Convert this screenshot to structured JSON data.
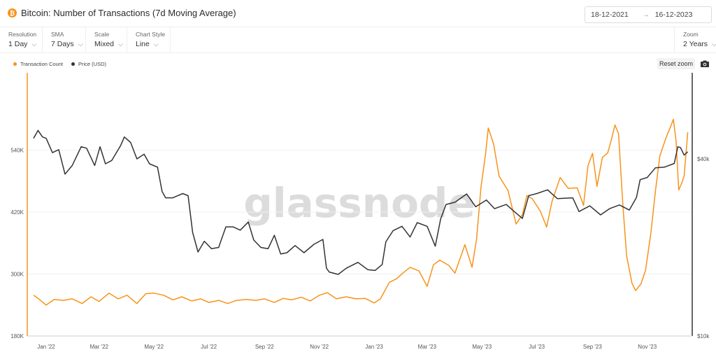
{
  "header": {
    "title": "Bitcoin: Number of Transactions (7d Moving Average)",
    "badge": "₿",
    "date_from": "18-12-2021",
    "date_arrow": "→",
    "date_to": "16-12-2023"
  },
  "toolbar": {
    "resolution": {
      "label": "Resolution",
      "value": "1 Day"
    },
    "sma": {
      "label": "SMA",
      "value": "7 Days"
    },
    "scale": {
      "label": "Scale",
      "value": "Mixed"
    },
    "chart_style": {
      "label": "Chart Style",
      "value": "Line"
    },
    "zoom": {
      "label": "Zoom",
      "value": "2 Years"
    },
    "chevron": "⌵"
  },
  "actions": {
    "reset_zoom": "Reset zoom"
  },
  "icons": {
    "camera": "camera-icon",
    "bitcoin": "bitcoin-icon"
  },
  "colors": {
    "transactions": "#f7931a",
    "price": "#333333"
  },
  "watermark": "glassnode",
  "chart_data": {
    "type": "line",
    "title": "Bitcoin: Number of Transactions (7d Moving Average)",
    "x_ticks": [
      "Jan '22",
      "Mar '22",
      "May '22",
      "Jul '22",
      "Sep '22",
      "Nov '22",
      "Jan '23",
      "Mar '23",
      "May '23",
      "Jul '23",
      "Sep '23",
      "Nov '23"
    ],
    "y_left": {
      "ticks": [
        "180K",
        "300K",
        "420K",
        "540K"
      ],
      "tick_values": [
        180000,
        300000,
        420000,
        540000
      ],
      "range": [
        180000,
        690000
      ],
      "axis_color": "#f7931a"
    },
    "y_right": {
      "ticks": [
        "$10k",
        "$40k"
      ],
      "tick_values": [
        10000,
        40000
      ],
      "scale": "log",
      "range": [
        10000,
        78500
      ],
      "axis_color": "#333333"
    },
    "legend": {
      "position": "top-left"
    },
    "grid": true,
    "series": [
      {
        "name": "Transaction Count",
        "axis": "left",
        "color": "#f7931a",
        "points": [
          [
            "2021-12-18",
            259000
          ],
          [
            "2021-12-23",
            253000
          ],
          [
            "2022-01-01",
            240000
          ],
          [
            "2022-01-10",
            251000
          ],
          [
            "2022-01-20",
            249000
          ],
          [
            "2022-01-30",
            252000
          ],
          [
            "2022-02-10",
            243000
          ],
          [
            "2022-02-20",
            256000
          ],
          [
            "2022-03-01",
            247000
          ],
          [
            "2022-03-12",
            263000
          ],
          [
            "2022-03-22",
            252000
          ],
          [
            "2022-04-01",
            259000
          ],
          [
            "2022-04-12",
            243000
          ],
          [
            "2022-04-22",
            262000
          ],
          [
            "2022-05-01",
            263000
          ],
          [
            "2022-05-12",
            259000
          ],
          [
            "2022-05-22",
            250000
          ],
          [
            "2022-06-01",
            256000
          ],
          [
            "2022-06-12",
            248000
          ],
          [
            "2022-06-22",
            252000
          ],
          [
            "2022-07-01",
            245000
          ],
          [
            "2022-07-12",
            249000
          ],
          [
            "2022-07-22",
            243000
          ],
          [
            "2022-08-01",
            249000
          ],
          [
            "2022-08-12",
            251000
          ],
          [
            "2022-08-22",
            249000
          ],
          [
            "2022-09-01",
            252000
          ],
          [
            "2022-09-12",
            245000
          ],
          [
            "2022-09-22",
            253000
          ],
          [
            "2022-10-01",
            250000
          ],
          [
            "2022-10-12",
            255000
          ],
          [
            "2022-10-22",
            248000
          ],
          [
            "2022-11-01",
            259000
          ],
          [
            "2022-11-10",
            264000
          ],
          [
            "2022-11-20",
            252000
          ],
          [
            "2022-12-01",
            256000
          ],
          [
            "2022-12-12",
            252000
          ],
          [
            "2022-12-22",
            253000
          ],
          [
            "2023-01-01",
            244000
          ],
          [
            "2023-01-08",
            252000
          ],
          [
            "2023-01-18",
            284000
          ],
          [
            "2023-01-26",
            291000
          ],
          [
            "2023-02-02",
            302000
          ],
          [
            "2023-02-10",
            313000
          ],
          [
            "2023-02-20",
            306000
          ],
          [
            "2023-03-01",
            276000
          ],
          [
            "2023-03-08",
            318000
          ],
          [
            "2023-03-15",
            327000
          ],
          [
            "2023-03-25",
            317000
          ],
          [
            "2023-04-01",
            302000
          ],
          [
            "2023-04-12",
            357000
          ],
          [
            "2023-04-20",
            313000
          ],
          [
            "2023-04-25",
            368000
          ],
          [
            "2023-04-30",
            470000
          ],
          [
            "2023-05-05",
            532000
          ],
          [
            "2023-05-08",
            583000
          ],
          [
            "2023-05-14",
            552000
          ],
          [
            "2023-05-20",
            490000
          ],
          [
            "2023-05-30",
            462000
          ],
          [
            "2023-06-08",
            397000
          ],
          [
            "2023-06-15",
            415000
          ],
          [
            "2023-06-20",
            452000
          ],
          [
            "2023-06-26",
            446000
          ],
          [
            "2023-07-05",
            422000
          ],
          [
            "2023-07-12",
            391000
          ],
          [
            "2023-07-18",
            441000
          ],
          [
            "2023-07-27",
            487000
          ],
          [
            "2023-08-05",
            466000
          ],
          [
            "2023-08-15",
            467000
          ],
          [
            "2023-08-22",
            433000
          ],
          [
            "2023-08-27",
            510000
          ],
          [
            "2023-09-01",
            534000
          ],
          [
            "2023-09-06",
            470000
          ],
          [
            "2023-09-12",
            526000
          ],
          [
            "2023-09-18",
            535000
          ],
          [
            "2023-09-22",
            560000
          ],
          [
            "2023-09-26",
            589000
          ],
          [
            "2023-09-30",
            572000
          ],
          [
            "2023-10-05",
            430000
          ],
          [
            "2023-10-09",
            335000
          ],
          [
            "2023-10-15",
            282000
          ],
          [
            "2023-10-19",
            268000
          ],
          [
            "2023-10-25",
            281000
          ],
          [
            "2023-10-30",
            307000
          ],
          [
            "2023-11-05",
            380000
          ],
          [
            "2023-11-10",
            460000
          ],
          [
            "2023-11-15",
            529000
          ],
          [
            "2023-11-22",
            565000
          ],
          [
            "2023-11-27",
            586000
          ],
          [
            "2023-11-30",
            600000
          ],
          [
            "2023-12-03",
            558000
          ],
          [
            "2023-12-06",
            463000
          ],
          [
            "2023-12-09",
            475000
          ],
          [
            "2023-12-12",
            490000
          ],
          [
            "2023-12-16",
            575000
          ]
        ]
      },
      {
        "name": "Price (USD)",
        "axis": "right",
        "color": "#333333",
        "points": [
          [
            "2021-12-18",
            47000
          ],
          [
            "2021-12-23",
            50000
          ],
          [
            "2021-12-28",
            47500
          ],
          [
            "2022-01-01",
            47000
          ],
          [
            "2022-01-08",
            42000
          ],
          [
            "2022-01-15",
            43000
          ],
          [
            "2022-01-22",
            35500
          ],
          [
            "2022-01-30",
            38000
          ],
          [
            "2022-02-09",
            44000
          ],
          [
            "2022-02-15",
            43500
          ],
          [
            "2022-02-24",
            38000
          ],
          [
            "2022-03-02",
            44000
          ],
          [
            "2022-03-08",
            38500
          ],
          [
            "2022-03-15",
            39500
          ],
          [
            "2022-03-25",
            44500
          ],
          [
            "2022-03-29",
            47500
          ],
          [
            "2022-04-05",
            45500
          ],
          [
            "2022-04-12",
            40000
          ],
          [
            "2022-04-20",
            41500
          ],
          [
            "2022-04-26",
            38500
          ],
          [
            "2022-05-05",
            37500
          ],
          [
            "2022-05-10",
            31000
          ],
          [
            "2022-05-14",
            29500
          ],
          [
            "2022-05-22",
            29500
          ],
          [
            "2022-06-02",
            30500
          ],
          [
            "2022-06-08",
            30000
          ],
          [
            "2022-06-13",
            22500
          ],
          [
            "2022-06-19",
            19300
          ],
          [
            "2022-06-26",
            21000
          ],
          [
            "2022-07-04",
            19800
          ],
          [
            "2022-07-12",
            20000
          ],
          [
            "2022-07-20",
            23500
          ],
          [
            "2022-07-28",
            23500
          ],
          [
            "2022-08-05",
            22900
          ],
          [
            "2022-08-14",
            24400
          ],
          [
            "2022-08-20",
            21200
          ],
          [
            "2022-08-28",
            20000
          ],
          [
            "2022-09-05",
            19800
          ],
          [
            "2022-09-12",
            22000
          ],
          [
            "2022-09-19",
            19000
          ],
          [
            "2022-09-26",
            19200
          ],
          [
            "2022-10-05",
            20300
          ],
          [
            "2022-10-15",
            19200
          ],
          [
            "2022-10-26",
            20500
          ],
          [
            "2022-11-05",
            21300
          ],
          [
            "2022-11-09",
            17000
          ],
          [
            "2022-11-12",
            16500
          ],
          [
            "2022-11-22",
            16200
          ],
          [
            "2022-12-01",
            17000
          ],
          [
            "2022-12-14",
            17800
          ],
          [
            "2022-12-25",
            16800
          ],
          [
            "2023-01-02",
            16700
          ],
          [
            "2023-01-10",
            17500
          ],
          [
            "2023-01-14",
            20900
          ],
          [
            "2023-01-22",
            22800
          ],
          [
            "2023-02-01",
            23600
          ],
          [
            "2023-02-10",
            21700
          ],
          [
            "2023-02-18",
            24300
          ],
          [
            "2023-03-01",
            23600
          ],
          [
            "2023-03-10",
            20200
          ],
          [
            "2023-03-16",
            25000
          ],
          [
            "2023-03-22",
            28000
          ],
          [
            "2023-04-01",
            28500
          ],
          [
            "2023-04-14",
            30400
          ],
          [
            "2023-04-24",
            27500
          ],
          [
            "2023-05-06",
            29000
          ],
          [
            "2023-05-15",
            27100
          ],
          [
            "2023-05-28",
            28000
          ],
          [
            "2023-06-06",
            26500
          ],
          [
            "2023-06-15",
            25100
          ],
          [
            "2023-06-22",
            30000
          ],
          [
            "2023-07-01",
            30500
          ],
          [
            "2023-07-13",
            31400
          ],
          [
            "2023-07-24",
            29300
          ],
          [
            "2023-08-10",
            29500
          ],
          [
            "2023-08-17",
            26500
          ],
          [
            "2023-08-29",
            27700
          ],
          [
            "2023-09-10",
            25800
          ],
          [
            "2023-09-20",
            27100
          ],
          [
            "2023-10-01",
            27900
          ],
          [
            "2023-10-12",
            26800
          ],
          [
            "2023-10-20",
            29600
          ],
          [
            "2023-10-24",
            34000
          ],
          [
            "2023-11-01",
            34600
          ],
          [
            "2023-11-10",
            37300
          ],
          [
            "2023-11-20",
            37500
          ],
          [
            "2023-12-01",
            38600
          ],
          [
            "2023-12-05",
            44000
          ],
          [
            "2023-12-08",
            43700
          ],
          [
            "2023-12-12",
            41200
          ],
          [
            "2023-12-16",
            42300
          ]
        ]
      }
    ]
  }
}
